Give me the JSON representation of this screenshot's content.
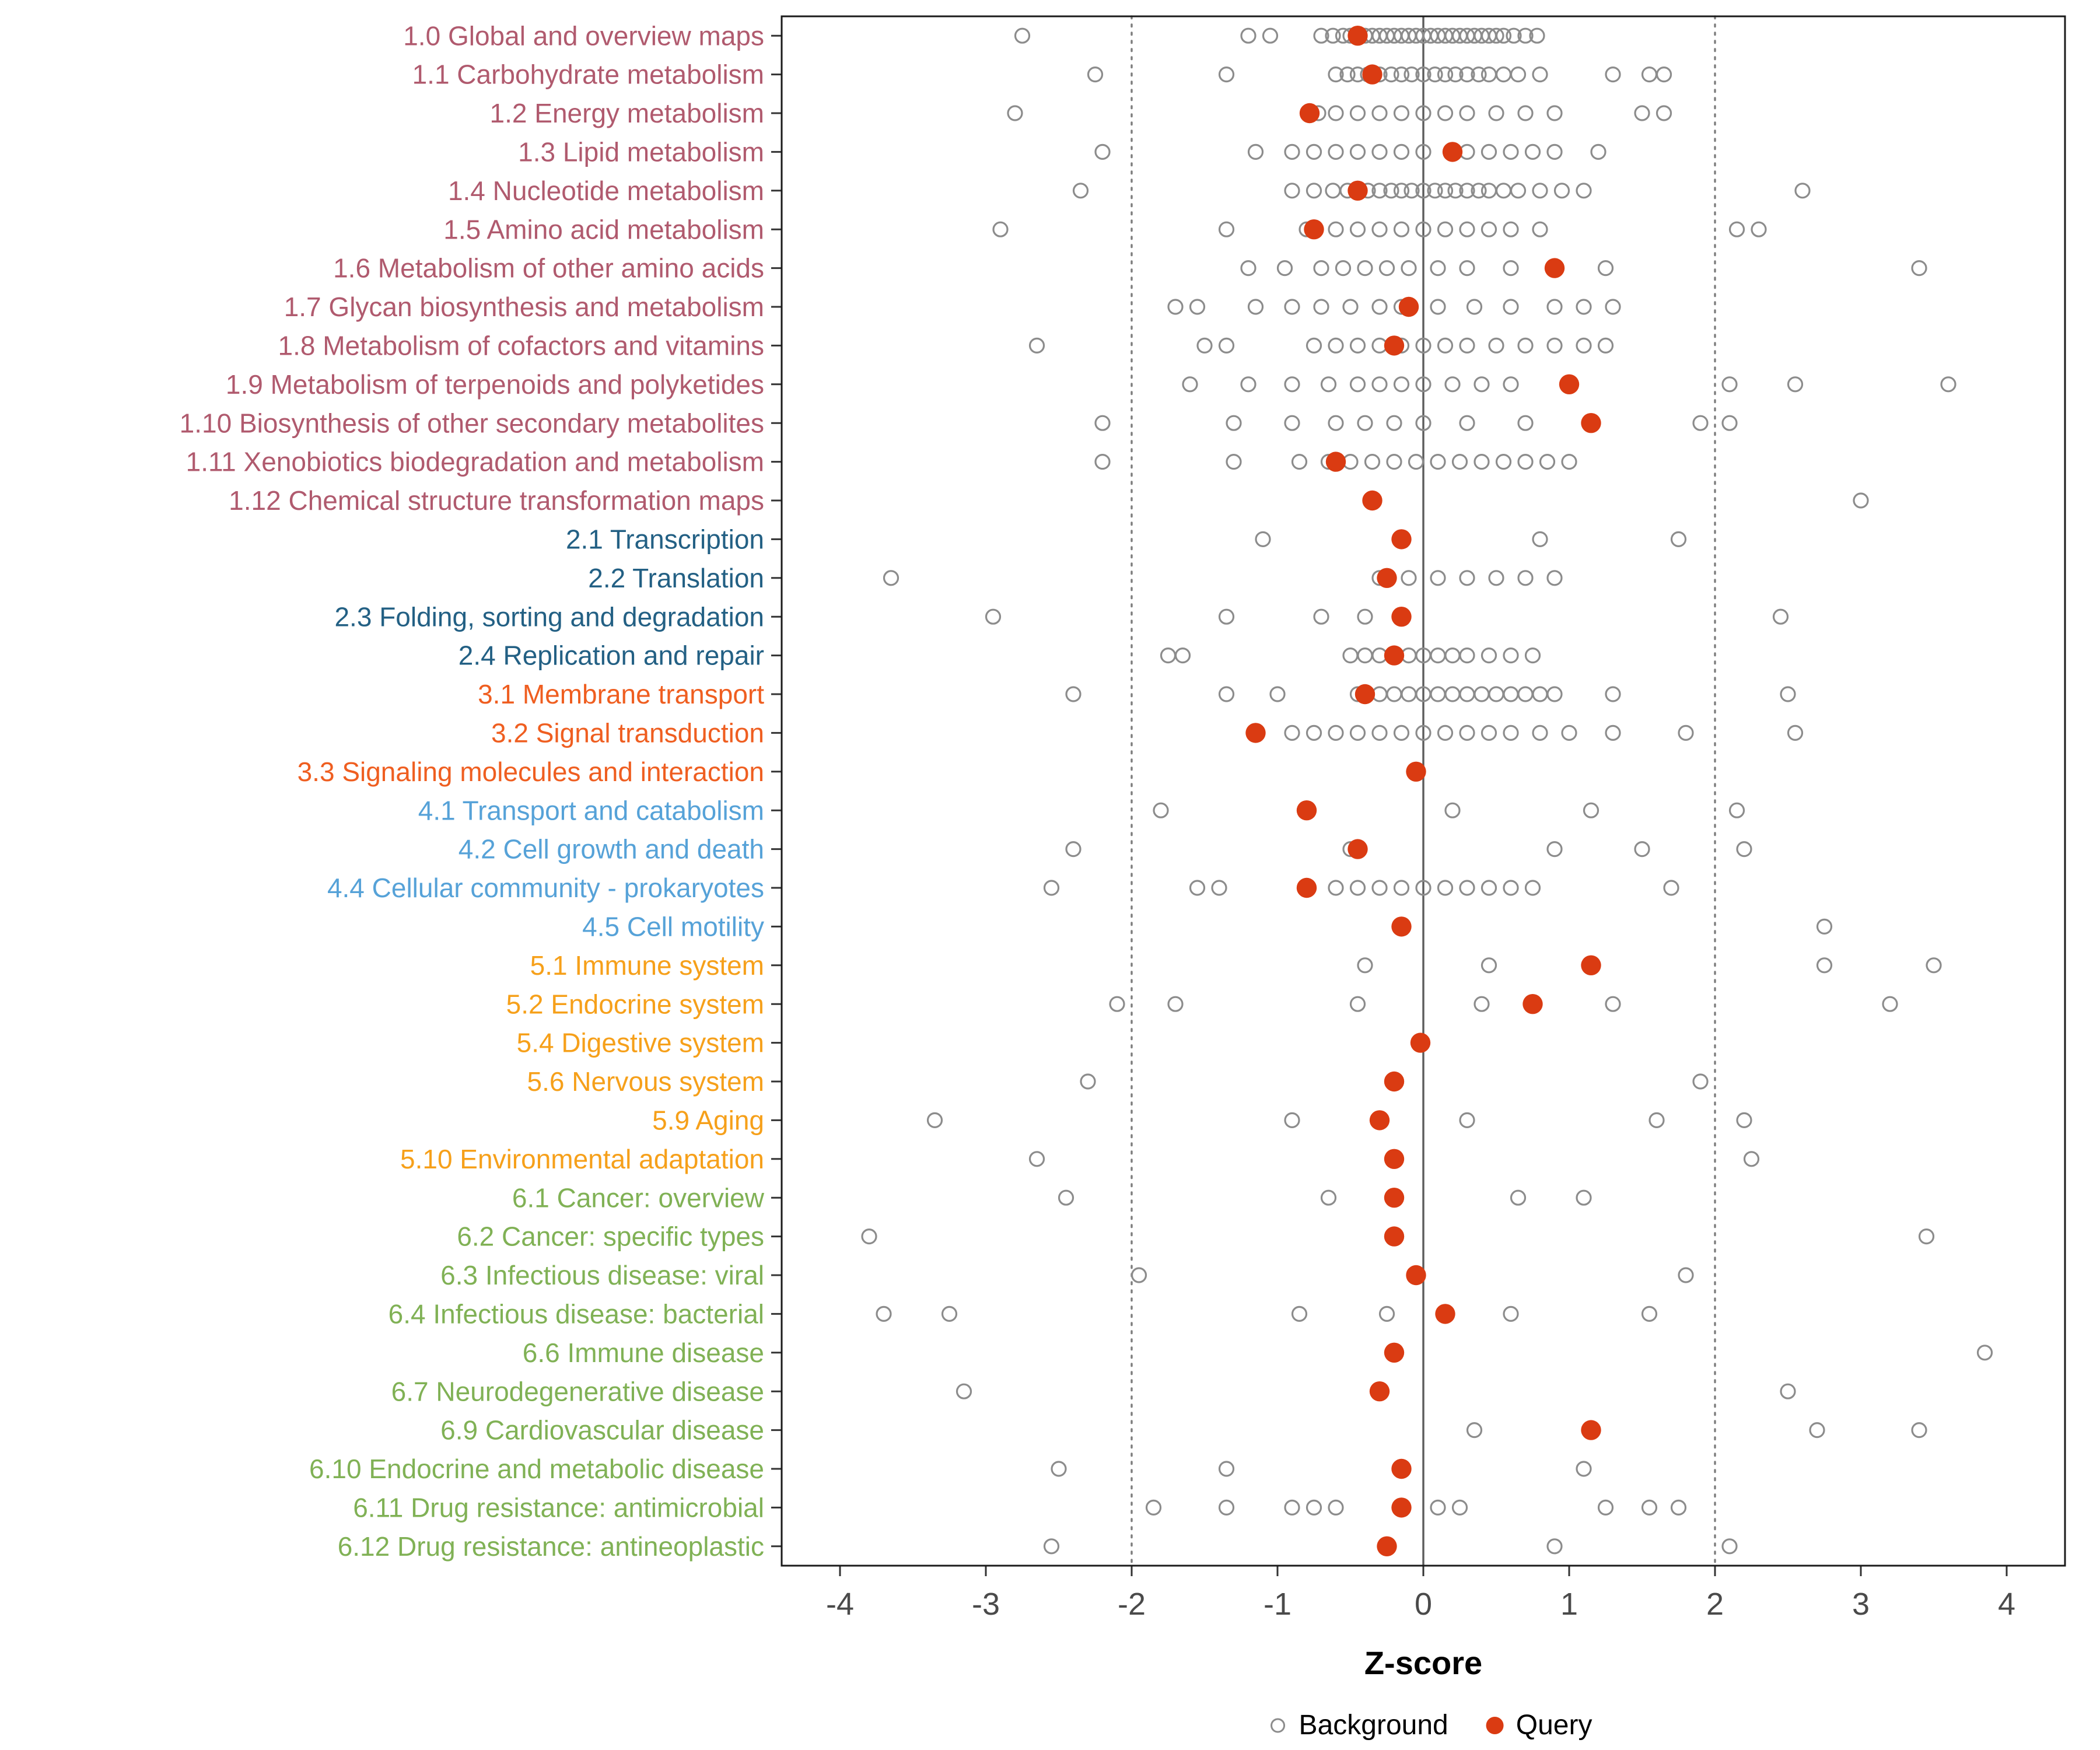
{
  "chart_data": {
    "type": "scatter",
    "title": "",
    "xlabel": "Z-score",
    "ylabel": "",
    "xlim": [
      -4.4,
      4.4
    ],
    "x_ticks": [
      -4,
      -3,
      -2,
      -1,
      0,
      1,
      2,
      3,
      4
    ],
    "reference_lines": {
      "solid": [
        0
      ],
      "dotted": [
        -2,
        2
      ]
    },
    "legend": {
      "background": "Background",
      "query": "Query"
    },
    "legend_position": "bottom",
    "grid": false,
    "colors": {
      "query": "#DA3B12",
      "background_point": "#8C8C8C",
      "ref_solid": "#5B5B5B",
      "ref_dotted": "#7D7D7D",
      "axis_text": "#4A4A4A",
      "panel_border": "#1A1A1A",
      "groups": {
        "1": "#B05A6E",
        "2": "#236084",
        "3": "#EF5E20",
        "4": "#56A2D8",
        "5": "#F6A01A",
        "6": "#80B155"
      }
    },
    "rows": [
      {
        "label": "1.0 Global and overview maps",
        "group": "1",
        "query": -0.45,
        "background": [
          -2.75,
          -1.2,
          -1.05,
          -0.7,
          -0.62,
          -0.55,
          -0.5,
          -0.45,
          -0.4,
          -0.35,
          -0.3,
          -0.25,
          -0.2,
          -0.15,
          -0.1,
          -0.05,
          0,
          0.05,
          0.1,
          0.15,
          0.2,
          0.25,
          0.3,
          0.35,
          0.4,
          0.45,
          0.5,
          0.55,
          0.62,
          0.7,
          0.78
        ]
      },
      {
        "label": "1.1 Carbohydrate metabolism",
        "group": "1",
        "query": -0.35,
        "background": [
          -2.25,
          -1.35,
          -0.6,
          -0.52,
          -0.45,
          -0.38,
          -0.3,
          -0.22,
          -0.15,
          -0.08,
          0,
          0.08,
          0.15,
          0.22,
          0.3,
          0.38,
          0.45,
          0.55,
          0.65,
          0.8,
          1.3,
          1.55,
          1.65
        ]
      },
      {
        "label": "1.2 Energy metabolism",
        "group": "1",
        "query": -0.78,
        "background": [
          -2.8,
          -0.72,
          -0.6,
          -0.45,
          -0.3,
          -0.15,
          0,
          0.15,
          0.3,
          0.5,
          0.7,
          0.9,
          1.5,
          1.65
        ]
      },
      {
        "label": "1.3 Lipid metabolism",
        "group": "1",
        "query": 0.2,
        "background": [
          -2.2,
          -1.15,
          -0.9,
          -0.75,
          -0.6,
          -0.45,
          -0.3,
          -0.15,
          0,
          0.3,
          0.45,
          0.6,
          0.75,
          0.9,
          1.2
        ]
      },
      {
        "label": "1.4 Nucleotide metabolism",
        "group": "1",
        "query": -0.45,
        "background": [
          -2.35,
          -0.9,
          -0.75,
          -0.62,
          -0.52,
          -0.45,
          -0.38,
          -0.3,
          -0.22,
          -0.15,
          -0.08,
          0,
          0.08,
          0.15,
          0.22,
          0.3,
          0.38,
          0.45,
          0.55,
          0.65,
          0.8,
          0.95,
          1.1,
          2.6
        ]
      },
      {
        "label": "1.5 Amino acid metabolism",
        "group": "1",
        "query": -0.75,
        "background": [
          -2.9,
          -1.35,
          -0.8,
          -0.6,
          -0.45,
          -0.3,
          -0.15,
          0,
          0.15,
          0.3,
          0.45,
          0.6,
          0.8,
          2.15,
          2.3
        ]
      },
      {
        "label": "1.6 Metabolism of other amino acids",
        "group": "1",
        "query": 0.9,
        "background": [
          -1.2,
          -0.95,
          -0.7,
          -0.55,
          -0.4,
          -0.25,
          -0.1,
          0.1,
          0.3,
          0.6,
          1.25,
          3.4
        ]
      },
      {
        "label": "1.7 Glycan biosynthesis and metabolism",
        "group": "1",
        "query": -0.1,
        "background": [
          -1.7,
          -1.55,
          -1.15,
          -0.9,
          -0.7,
          -0.5,
          -0.3,
          -0.15,
          0.1,
          0.35,
          0.6,
          0.9,
          1.1,
          1.3
        ]
      },
      {
        "label": "1.8 Metabolism of cofactors and vitamins",
        "group": "1",
        "query": -0.2,
        "background": [
          -2.65,
          -1.5,
          -1.35,
          -0.75,
          -0.6,
          -0.45,
          -0.3,
          -0.15,
          0,
          0.15,
          0.3,
          0.5,
          0.7,
          0.9,
          1.1,
          1.25
        ]
      },
      {
        "label": "1.9 Metabolism of terpenoids and polyketides",
        "group": "1",
        "query": 1.0,
        "background": [
          -1.6,
          -1.2,
          -0.9,
          -0.65,
          -0.45,
          -0.3,
          -0.15,
          0,
          0.2,
          0.4,
          0.6,
          2.1,
          2.55,
          3.6
        ]
      },
      {
        "label": "1.10 Biosynthesis of other secondary metabolites",
        "group": "1",
        "query": 1.15,
        "background": [
          -2.2,
          -1.3,
          -0.9,
          -0.6,
          -0.4,
          -0.2,
          0,
          0.3,
          0.7,
          1.9,
          2.1
        ]
      },
      {
        "label": "1.11 Xenobiotics biodegradation and metabolism",
        "group": "1",
        "query": -0.6,
        "background": [
          -2.2,
          -1.3,
          -0.85,
          -0.65,
          -0.5,
          -0.35,
          -0.2,
          -0.05,
          0.1,
          0.25,
          0.4,
          0.55,
          0.7,
          0.85,
          1.0
        ]
      },
      {
        "label": "1.12 Chemical structure transformation maps",
        "group": "1",
        "query": -0.35,
        "background": [
          3.0
        ]
      },
      {
        "label": "2.1 Transcription",
        "group": "2",
        "query": -0.15,
        "background": [
          -1.1,
          0.8,
          1.75
        ]
      },
      {
        "label": "2.2 Translation",
        "group": "2",
        "query": -0.25,
        "background": [
          -3.65,
          -0.3,
          -0.1,
          0.1,
          0.3,
          0.5,
          0.7,
          0.9
        ]
      },
      {
        "label": "2.3 Folding, sorting and degradation",
        "group": "2",
        "query": -0.15,
        "background": [
          -2.95,
          -1.35,
          -0.7,
          -0.4,
          2.45
        ]
      },
      {
        "label": "2.4 Replication and repair",
        "group": "2",
        "query": -0.2,
        "background": [
          -1.75,
          -1.65,
          -0.5,
          -0.4,
          -0.3,
          -0.2,
          -0.1,
          0,
          0.1,
          0.2,
          0.3,
          0.45,
          0.6,
          0.75
        ]
      },
      {
        "label": "3.1 Membrane transport",
        "group": "3",
        "query": -0.4,
        "background": [
          -2.4,
          -1.35,
          -1.0,
          -0.45,
          -0.3,
          -0.2,
          -0.1,
          0,
          0.1,
          0.2,
          0.3,
          0.4,
          0.5,
          0.6,
          0.7,
          0.8,
          0.9,
          1.3,
          2.5
        ]
      },
      {
        "label": "3.2 Signal transduction",
        "group": "3",
        "query": -1.15,
        "background": [
          -0.9,
          -0.75,
          -0.6,
          -0.45,
          -0.3,
          -0.15,
          0,
          0.15,
          0.3,
          0.45,
          0.6,
          0.8,
          1.0,
          1.3,
          1.8,
          2.55
        ]
      },
      {
        "label": "3.3 Signaling molecules and interaction",
        "group": "3",
        "query": -0.05,
        "background": []
      },
      {
        "label": "4.1 Transport and catabolism",
        "group": "4",
        "query": -0.8,
        "background": [
          -1.8,
          0.2,
          1.15,
          2.15
        ]
      },
      {
        "label": "4.2 Cell growth and death",
        "group": "4",
        "query": -0.45,
        "background": [
          -2.4,
          -0.5,
          0.9,
          1.5,
          2.2
        ]
      },
      {
        "label": "4.4 Cellular community - prokaryotes",
        "group": "4",
        "query": -0.8,
        "background": [
          -2.55,
          -1.55,
          -1.4,
          -0.6,
          -0.45,
          -0.3,
          -0.15,
          0,
          0.15,
          0.3,
          0.45,
          0.6,
          0.75,
          1.7
        ]
      },
      {
        "label": "4.5 Cell motility",
        "group": "4",
        "query": -0.15,
        "background": [
          2.75
        ]
      },
      {
        "label": "5.1 Immune system",
        "group": "5",
        "query": 1.15,
        "background": [
          -0.4,
          0.45,
          2.75,
          3.5
        ]
      },
      {
        "label": "5.2 Endocrine system",
        "group": "5",
        "query": 0.75,
        "background": [
          -2.1,
          -1.7,
          -0.45,
          0.4,
          1.3,
          3.2
        ]
      },
      {
        "label": "5.4 Digestive system",
        "group": "5",
        "query": -0.02,
        "background": []
      },
      {
        "label": "5.6 Nervous system",
        "group": "5",
        "query": -0.2,
        "background": [
          -2.3,
          1.9
        ]
      },
      {
        "label": "5.9 Aging",
        "group": "5",
        "query": -0.3,
        "background": [
          -3.35,
          -0.9,
          0.3,
          1.6,
          2.2
        ]
      },
      {
        "label": "5.10 Environmental adaptation",
        "group": "5",
        "query": -0.2,
        "background": [
          -2.65,
          2.25
        ]
      },
      {
        "label": "6.1 Cancer: overview",
        "group": "6",
        "query": -0.2,
        "background": [
          -2.45,
          -0.65,
          0.65,
          1.1
        ]
      },
      {
        "label": "6.2 Cancer: specific types",
        "group": "6",
        "query": -0.2,
        "background": [
          -3.8,
          3.45
        ]
      },
      {
        "label": "6.3 Infectious disease: viral",
        "group": "6",
        "query": -0.05,
        "background": [
          -1.95,
          1.8
        ]
      },
      {
        "label": "6.4 Infectious disease: bacterial",
        "group": "6",
        "query": 0.15,
        "background": [
          -3.7,
          -3.25,
          -0.85,
          -0.25,
          0.6,
          1.55
        ]
      },
      {
        "label": "6.6 Immune disease",
        "group": "6",
        "query": -0.2,
        "background": [
          3.85
        ]
      },
      {
        "label": "6.7 Neurodegenerative disease",
        "group": "6",
        "query": -0.3,
        "background": [
          -3.15,
          2.5
        ]
      },
      {
        "label": "6.9 Cardiovascular disease",
        "group": "6",
        "query": 1.15,
        "background": [
          0.35,
          2.7,
          3.4
        ]
      },
      {
        "label": "6.10 Endocrine and metabolic disease",
        "group": "6",
        "query": -0.15,
        "background": [
          -2.5,
          -1.35,
          1.1
        ]
      },
      {
        "label": "6.11 Drug resistance: antimicrobial",
        "group": "6",
        "query": -0.15,
        "background": [
          -1.85,
          -1.35,
          -0.9,
          -0.75,
          -0.6,
          0.1,
          0.25,
          1.25,
          1.55,
          1.75
        ]
      },
      {
        "label": "6.12 Drug resistance: antineoplastic",
        "group": "6",
        "query": -0.25,
        "background": [
          -2.55,
          0.9,
          2.1
        ]
      }
    ]
  }
}
